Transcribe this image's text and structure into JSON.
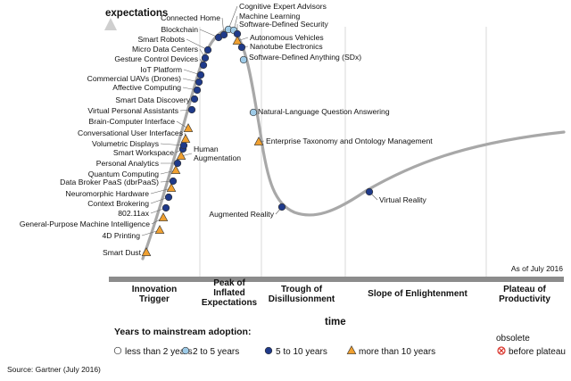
{
  "chart_data": {
    "type": "scatter",
    "title": "",
    "xlabel": "time",
    "ylabel": "expectations",
    "annotation": "As of July 2016",
    "source": "Source: Gartner (July 2016)",
    "phases": [
      [
        "Innovation",
        "Trigger"
      ],
      [
        "Peak of",
        "Inflated",
        "Expectations"
      ],
      [
        "Trough of",
        "Disillusionment"
      ],
      [
        "Slope of Enlightenment"
      ],
      [
        "Plateau of",
        "Productivity"
      ]
    ],
    "legend": {
      "title": "Years to mainstream adoption:",
      "items": [
        {
          "key": "lt2",
          "label": "less than 2 years",
          "marker": "circle",
          "color": "#ffffff"
        },
        {
          "key": "2to5",
          "label": "2 to 5 years",
          "marker": "circle",
          "color": "#9ecbe8"
        },
        {
          "key": "5to10",
          "label": "5 to 10 years",
          "marker": "circle",
          "color": "#1f3a8a"
        },
        {
          "key": "gt10",
          "label": "more than 10 years",
          "marker": "triangle",
          "color": "#f0a030"
        },
        {
          "key": "obsolete",
          "label": [
            "obsolete",
            "before plateau"
          ],
          "marker": "crossed-circle",
          "color": "#d9342b"
        }
      ]
    },
    "technologies": [
      {
        "name": "Smart Dust",
        "category": "gt10"
      },
      {
        "name": "4D Printing",
        "category": "gt10"
      },
      {
        "name": "General-Purpose Machine Intelligence",
        "category": "gt10"
      },
      {
        "name": "802.11ax",
        "category": "5to10"
      },
      {
        "name": "Context Brokering",
        "category": "5to10"
      },
      {
        "name": "Neuromorphic Hardware",
        "category": "gt10"
      },
      {
        "name": "Data Broker PaaS (dbrPaaS)",
        "category": "5to10"
      },
      {
        "name": "Quantum Computing",
        "category": "gt10"
      },
      {
        "name": "Personal Analytics",
        "category": "5to10"
      },
      {
        "name": "Human Augmentation",
        "category": "gt10"
      },
      {
        "name": "Smart Workspace",
        "category": "5to10"
      },
      {
        "name": "Volumetric Displays",
        "category": "5to10"
      },
      {
        "name": "Conversational User Interfaces",
        "category": "gt10"
      },
      {
        "name": "Brain-Computer Interface",
        "category": "gt10"
      },
      {
        "name": "Virtual Personal Assistants",
        "category": "5to10"
      },
      {
        "name": "Smart Data Discovery",
        "category": "5to10"
      },
      {
        "name": "Affective Computing",
        "category": "5to10"
      },
      {
        "name": "Commercial UAVs (Drones)",
        "category": "5to10"
      },
      {
        "name": "IoT Platform",
        "category": "5to10"
      },
      {
        "name": "Gesture Control Devices",
        "category": "5to10"
      },
      {
        "name": "Micro Data Centers",
        "category": "5to10"
      },
      {
        "name": "Smart Robots",
        "category": "5to10"
      },
      {
        "name": "Blockchain",
        "category": "5to10"
      },
      {
        "name": "Connected Home",
        "category": "5to10"
      },
      {
        "name": "Cognitive Expert Advisors",
        "category": "2to5"
      },
      {
        "name": "Machine Learning",
        "category": "2to5"
      },
      {
        "name": "Software-Defined Security",
        "category": "5to10"
      },
      {
        "name": "Autonomous Vehicles",
        "category": "gt10"
      },
      {
        "name": "Nanotube Electronics",
        "category": "5to10"
      },
      {
        "name": "Software-Defined Anything (SDx)",
        "category": "2to5"
      },
      {
        "name": "Natural-Language Question Answering",
        "category": "2to5"
      },
      {
        "name": "Enterprise Taxonomy and Ontology Management",
        "category": "gt10"
      },
      {
        "name": "Augmented Reality",
        "category": "5to10"
      },
      {
        "name": "Virtual Reality",
        "category": "5to10"
      }
    ]
  }
}
